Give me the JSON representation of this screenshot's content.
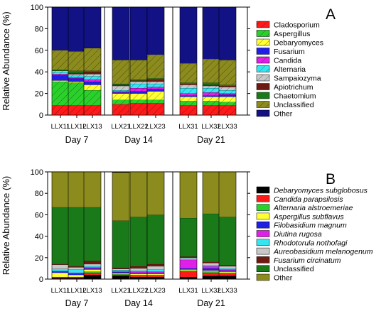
{
  "colors": {
    "black": "#000000",
    "red": "#ff1a1a",
    "green": "#2bd12b",
    "yellow": "#ffff33",
    "blue": "#1f1fe8",
    "magenta": "#e020e8",
    "cyan": "#33e6f2",
    "lightgray": "#c8c8c8",
    "maroon": "#6e1a10",
    "darkgreen": "#1a7a1a",
    "olive": "#8c8c1e",
    "navy": "#121285"
  },
  "chart_data": [
    {
      "type": "bar",
      "panel_label": "A",
      "ylabel": "Relative Abundance (%)",
      "ylim": [
        0,
        100
      ],
      "yticks": [
        0,
        20,
        40,
        60,
        80,
        100
      ],
      "groups": [
        {
          "label": "Day 7",
          "samples": [
            "LLX11",
            "LLX12",
            "LLX13"
          ]
        },
        {
          "label": "Day 14",
          "samples": [
            "LLX21",
            "LLX22",
            "LLX23"
          ]
        },
        {
          "label": "Day 21",
          "samples": [
            "LLX31",
            "LLX32",
            "LLX33"
          ]
        }
      ],
      "categories": [
        "LLX11",
        "LLX12",
        "LLX13",
        "LLX21",
        "LLX22",
        "LLX23",
        "LLX31",
        "LLX32",
        "LLX33"
      ],
      "legend_position": "right",
      "series": [
        {
          "name": "Cladosporium",
          "color": "#ff1a1a",
          "hatch": true,
          "values": [
            9,
            9,
            9,
            10,
            11,
            11,
            9,
            9,
            9
          ]
        },
        {
          "name": "Aspergillus",
          "color": "#2bd12b",
          "hatch": true,
          "values": [
            22,
            21,
            14,
            4,
            3,
            3,
            4,
            4,
            3
          ]
        },
        {
          "name": "Debaryomyces",
          "color": "#ffff33",
          "hatch": true,
          "values": [
            1,
            1,
            5,
            6,
            6,
            8,
            4,
            4,
            5
          ]
        },
        {
          "name": "Fusarium",
          "color": "#1f1fe8",
          "hatch": false,
          "values": [
            5,
            3,
            3,
            1,
            2,
            2,
            1,
            1,
            2
          ]
        },
        {
          "name": "Candida",
          "color": "#e020e8",
          "hatch": true,
          "values": [
            1,
            1,
            2,
            1,
            3,
            2,
            2,
            3,
            1
          ]
        },
        {
          "name": "Alternaria",
          "color": "#33e6f2",
          "hatch": true,
          "values": [
            2,
            2,
            3,
            1,
            4,
            3,
            5,
            4,
            3
          ]
        },
        {
          "name": "Sampaiozyma",
          "color": "#c8c8c8",
          "hatch": true,
          "values": [
            1,
            1,
            2,
            4,
            2,
            2,
            3,
            2,
            3
          ]
        },
        {
          "name": "Apiotrichum",
          "color": "#6e1a10",
          "hatch": false,
          "values": [
            0,
            1,
            2,
            1,
            1,
            2,
            1,
            1,
            1
          ]
        },
        {
          "name": "Chaetomium",
          "color": "#1a7a1a",
          "hatch": false,
          "values": [
            1,
            2,
            1,
            1,
            1,
            1,
            1,
            2,
            1
          ]
        },
        {
          "name": "Unclassified",
          "color": "#8c8c1e",
          "hatch": true,
          "values": [
            18,
            18,
            21,
            22,
            18,
            22,
            18,
            22,
            23
          ]
        },
        {
          "name": "Other",
          "color": "#121285",
          "hatch": false,
          "values": [
            40,
            41,
            38,
            49,
            49,
            44,
            52,
            48,
            49
          ]
        }
      ]
    },
    {
      "type": "bar",
      "panel_label": "B",
      "ylabel": "Relative Abundance (%)",
      "ylim": [
        0,
        100
      ],
      "yticks": [
        0,
        20,
        40,
        60,
        80,
        100
      ],
      "groups": [
        {
          "label": "Day 7",
          "samples": [
            "LLX11",
            "LLX12",
            "LLX13"
          ]
        },
        {
          "label": "Day 14",
          "samples": [
            "LLX21",
            "LLX22",
            "LLX23"
          ]
        },
        {
          "label": "Day 21",
          "samples": [
            "LLX31",
            "LLX32",
            "LLX33"
          ]
        }
      ],
      "categories": [
        "LLX11",
        "LLX12",
        "LLX13",
        "LLX21",
        "LLX22",
        "LLX23",
        "LLX31",
        "LLX32",
        "LLX33"
      ],
      "legend_position": "right",
      "series": [
        {
          "name": "Debaryomyces subglobosus",
          "color": "#000000",
          "hatch": false,
          "values": [
            1,
            1,
            4,
            3,
            2,
            2,
            2,
            3,
            3
          ]
        },
        {
          "name": "Candida parapsilosis",
          "color": "#ff1a1a",
          "hatch": false,
          "values": [
            0.5,
            0.5,
            2,
            1,
            1,
            1,
            5,
            3,
            2
          ]
        },
        {
          "name": "Alternaria alstroemeriae",
          "color": "#2bd12b",
          "hatch": false,
          "values": [
            0.5,
            0.5,
            1,
            0.5,
            1,
            1,
            1,
            1,
            1
          ]
        },
        {
          "name": "Aspergillus subflavus",
          "color": "#ffff33",
          "hatch": false,
          "values": [
            4,
            2,
            2,
            1,
            1,
            1,
            1,
            1,
            1
          ]
        },
        {
          "name": "Filobasidium magnum",
          "color": "#1f1fe8",
          "hatch": false,
          "values": [
            1,
            1,
            1,
            1,
            1,
            1,
            1,
            2,
            1
          ]
        },
        {
          "name": "Diutina rugosa",
          "color": "#e020e8",
          "hatch": false,
          "values": [
            0.5,
            1,
            1,
            1,
            1,
            1,
            8,
            2,
            1
          ]
        },
        {
          "name": "Rhodotorula nothofagi",
          "color": "#33e6f2",
          "hatch": false,
          "values": [
            2,
            3,
            1,
            1,
            1,
            2,
            1,
            1,
            1
          ]
        },
        {
          "name": "Aureobasidium melanogenum",
          "color": "#c8c8c8",
          "hatch": false,
          "values": [
            4,
            2,
            2,
            1,
            2,
            3,
            1,
            2,
            2
          ]
        },
        {
          "name": "Fusarium circinatum",
          "color": "#6e1a10",
          "hatch": false,
          "values": [
            0.5,
            1,
            3,
            1,
            2,
            2,
            1,
            1,
            1
          ]
        },
        {
          "name": "Unclassified",
          "color": "#1a7a1a",
          "hatch": false,
          "values": [
            53,
            55,
            50,
            44,
            46,
            46,
            36,
            45,
            45
          ]
        },
        {
          "name": "Other",
          "color": "#8c8c1e",
          "hatch": false,
          "values": [
            33,
            33,
            33,
            45,
            42,
            40,
            43,
            39,
            42
          ]
        }
      ]
    }
  ]
}
